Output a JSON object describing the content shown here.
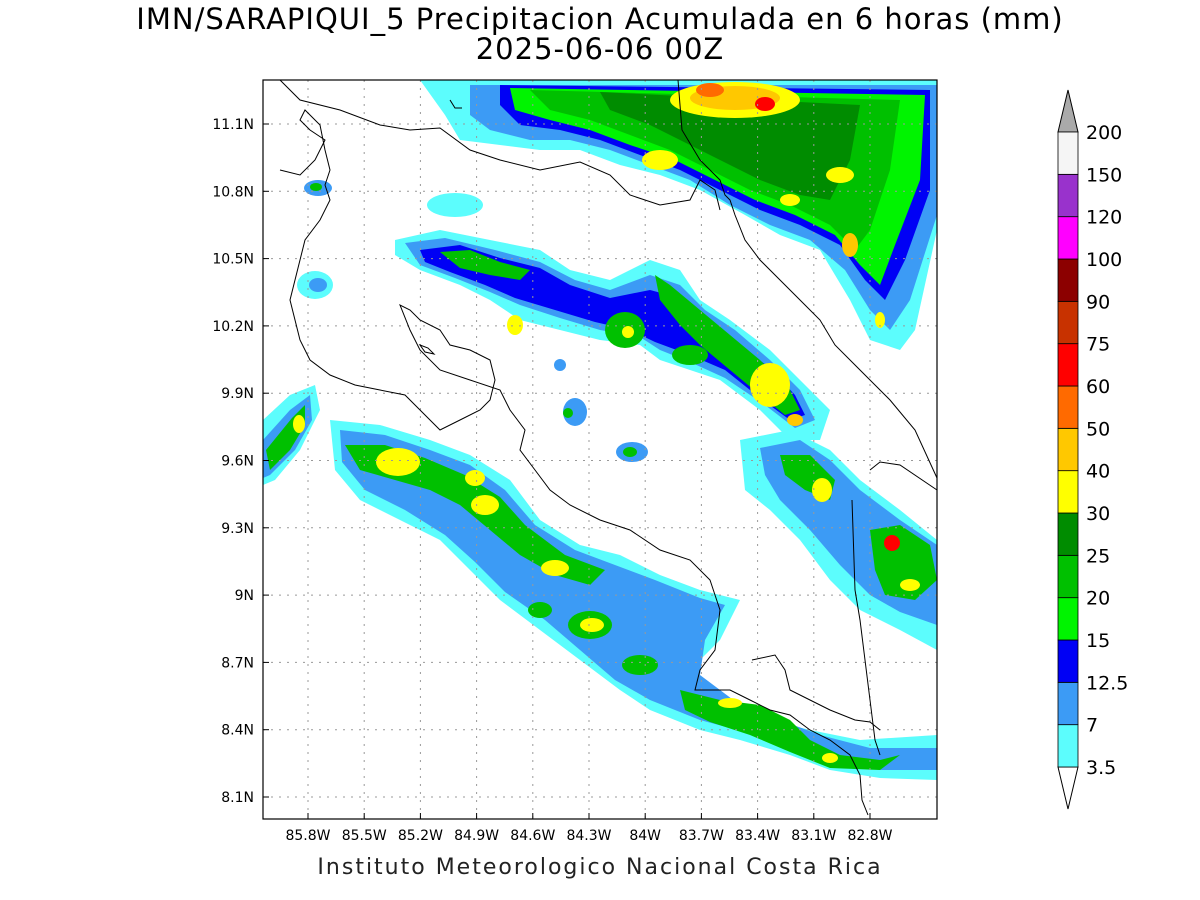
{
  "header": {
    "title_line1": "IMN/SARAPIQUI_5 Precipitacion Acumulada en 6 horas (mm)",
    "title_line2": "2025-06-06 00Z"
  },
  "footer": {
    "text": "Instituto Meteorologico Nacional Costa Rica"
  },
  "map": {
    "lon_ticks": [
      "85.8W",
      "85.5W",
      "85.2W",
      "84.9W",
      "84.6W",
      "84.3W",
      "84W",
      "83.7W",
      "83.4W",
      "83.1W",
      "82.8W"
    ],
    "lat_ticks": [
      "11.1N",
      "10.8N",
      "10.5N",
      "10.2N",
      "9.9N",
      "9.6N",
      "9.3N",
      "9N",
      "8.7N",
      "8.4N",
      "8.1N"
    ],
    "grid": true
  },
  "colorbar": {
    "levels": [
      "3.5",
      "7",
      "12.5",
      "15",
      "20",
      "25",
      "30",
      "40",
      "50",
      "60",
      "75",
      "90",
      "100",
      "120",
      "150",
      "200"
    ],
    "colors": [
      "#ffffff",
      "#5cfdfd",
      "#3c9bf5",
      "#0000f5",
      "#00f400",
      "#00c000",
      "#008c00",
      "#ffff00",
      "#ffc800",
      "#ff6a00",
      "#ff0000",
      "#c83200",
      "#8c0000",
      "#ff00ff",
      "#9932cc",
      "#f5f5f5",
      "#aaaaaa"
    ]
  }
}
